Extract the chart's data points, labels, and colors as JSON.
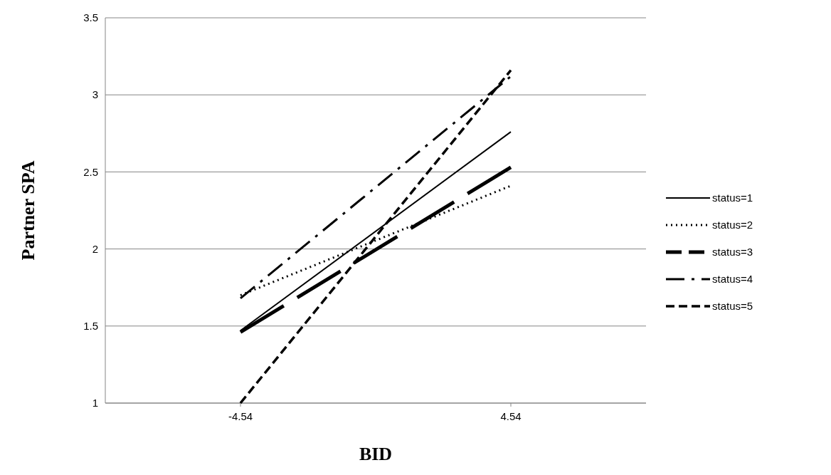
{
  "chart_data": {
    "type": "line",
    "xlabel": "BID",
    "ylabel": "Partner SPA",
    "categories": [
      "-4.54",
      "4.54"
    ],
    "ylim": [
      1,
      3.5
    ],
    "yticks": [
      1,
      1.5,
      2,
      2.5,
      3,
      3.5
    ],
    "grid": "y",
    "legend": "right",
    "series": [
      {
        "name": "status=1",
        "color": "#000000",
        "line_style": "solid",
        "values": [
          1.47,
          2.76
        ]
      },
      {
        "name": "status=2",
        "color": "#000000",
        "line_style": "dotted",
        "values": [
          1.7,
          2.41
        ]
      },
      {
        "name": "status=3",
        "color": "#000000",
        "line_style": "longdash",
        "values": [
          1.46,
          2.53
        ]
      },
      {
        "name": "status=4",
        "color": "#000000",
        "line_style": "dashdot",
        "values": [
          1.68,
          3.12
        ]
      },
      {
        "name": "status=5",
        "color": "#000000",
        "line_style": "dashed",
        "values": [
          1,
          3.16
        ]
      }
    ]
  }
}
